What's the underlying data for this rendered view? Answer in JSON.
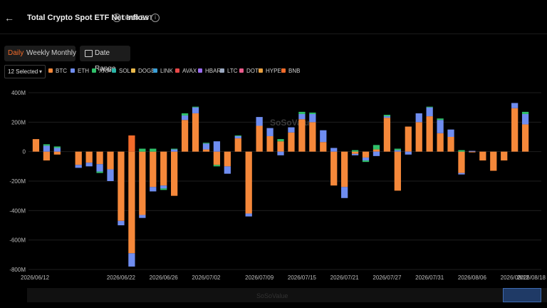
{
  "header": {
    "back_icon": "arrow-left-icon",
    "title": "Total Crypto Spot ETF Net Inflow",
    "date": "08/18",
    "timezone": "EST"
  },
  "controls": {
    "periods": [
      "Daily",
      "Weekly",
      "Monthly"
    ],
    "active_period": "Daily",
    "date_range_label": "Date Range",
    "select_label": "12 Selected"
  },
  "legend": [
    {
      "name": "BTC",
      "color": "#f5883a"
    },
    {
      "name": "ETH",
      "color": "#6f8df0"
    },
    {
      "name": "XRP",
      "color": "#2fc06a"
    },
    {
      "name": "SOL",
      "color": "#2ab6a8"
    },
    {
      "name": "DOGE",
      "color": "#e8b84b"
    },
    {
      "name": "LINK",
      "color": "#3a9fd6"
    },
    {
      "name": "AVAX",
      "color": "#e84848"
    },
    {
      "name": "HBAR",
      "color": "#9b6cf0"
    },
    {
      "name": "LTC",
      "color": "#9aa8c0"
    },
    {
      "name": "DOT",
      "color": "#e85a8a"
    },
    {
      "name": "HYPE",
      "color": "#e8a040"
    },
    {
      "name": "BNB",
      "color": "#f26b2a"
    }
  ],
  "watermark": "SoSoValue",
  "chart_data": {
    "type": "bar",
    "stacked": true,
    "ylim": [
      -800,
      400
    ],
    "y_ticks": [
      400,
      200,
      0,
      -200,
      -400,
      -600,
      -800
    ],
    "y_tick_labels": [
      "400M",
      "200M",
      "0",
      "-200M",
      "-400M",
      "-600M",
      "-800M"
    ],
    "x_tick_labels": [
      "2026/06/12",
      "2026/06/22",
      "2026/06/26",
      "2026/07/02",
      "2026/07/09",
      "2026/07/15",
      "2026/07/21",
      "2026/07/27",
      "2026/07/31",
      "2026/08/06",
      "2026/08/12",
      "2026/08/18"
    ],
    "x_tick_positions": [
      0,
      8,
      12,
      16,
      21,
      25,
      29,
      33,
      37,
      41,
      45,
      49
    ],
    "days": [
      {
        "btc": 85,
        "eth": 0,
        "other": 0
      },
      {
        "btc": -60,
        "eth": 40,
        "other": 10
      },
      {
        "btc": -20,
        "eth": 25,
        "other": 10
      },
      {
        "btc": 0,
        "eth": 0,
        "other": 0
      },
      {
        "btc": -90,
        "eth": -20,
        "other": 0
      },
      {
        "btc": -75,
        "eth": -25,
        "other": 0
      },
      {
        "btc": -85,
        "eth": -50,
        "other": -10
      },
      {
        "btc": -120,
        "eth": -80,
        "other": 0
      },
      {
        "btc": -470,
        "eth": -30,
        "other": 0
      },
      {
        "btc": -690,
        "eth": -90,
        "other": 0,
        "bnb": 110
      },
      {
        "btc": -430,
        "eth": -20,
        "other": 20
      },
      {
        "btc": -240,
        "eth": -30,
        "other": 20
      },
      {
        "btc": -230,
        "eth": -20,
        "other": -10
      },
      {
        "btc": -300,
        "eth": 15,
        "other": 5
      },
      {
        "btc": 215,
        "eth": 30,
        "other": 15
      },
      {
        "btc": 260,
        "eth": 40,
        "other": 5
      },
      {
        "btc": 15,
        "eth": 40,
        "other": 5
      },
      {
        "btc": -90,
        "eth": 70,
        "other": -10
      },
      {
        "btc": -100,
        "eth": -50,
        "other": 0
      },
      {
        "btc": 90,
        "eth": 15,
        "other": 5
      },
      {
        "btc": -420,
        "eth": -20,
        "other": 0
      },
      {
        "btc": 175,
        "eth": 60,
        "other": 0
      },
      {
        "btc": 105,
        "eth": 55,
        "other": 0
      },
      {
        "btc": 70,
        "eth": -25,
        "other": 15
      },
      {
        "btc": 130,
        "eth": 35,
        "other": 0
      },
      {
        "btc": 220,
        "eth": 35,
        "other": 15
      },
      {
        "btc": 200,
        "eth": 55,
        "other": 10
      },
      {
        "btc": 65,
        "eth": 80,
        "other": 0
      },
      {
        "btc": -230,
        "eth": 25,
        "other": 0
      },
      {
        "btc": -240,
        "eth": -75,
        "other": 0
      },
      {
        "btc": -15,
        "eth": -10,
        "other": 10
      },
      {
        "btc": -40,
        "eth": -20,
        "other": -10
      },
      {
        "btc": 15,
        "eth": -30,
        "other": 30
      },
      {
        "btc": 230,
        "eth": 10,
        "other": 10
      },
      {
        "btc": -265,
        "eth": 10,
        "other": 10
      },
      {
        "btc": 170,
        "eth": -20,
        "other": 0
      },
      {
        "btc": 200,
        "eth": 60,
        "other": 0
      },
      {
        "btc": 240,
        "eth": 60,
        "other": 5
      },
      {
        "btc": 125,
        "eth": 90,
        "other": 10
      },
      {
        "btc": 100,
        "eth": 50,
        "other": 0
      },
      {
        "btc": -145,
        "eth": -10,
        "other": 10
      },
      {
        "btc": -5,
        "eth": 5,
        "other": 0
      },
      {
        "btc": -60,
        "eth": 0,
        "other": 0
      },
      {
        "btc": -130,
        "eth": 0,
        "other": 0
      },
      {
        "btc": -60,
        "eth": 0,
        "other": 0
      },
      {
        "btc": 295,
        "eth": 35,
        "other": 0
      },
      {
        "btc": 185,
        "eth": 70,
        "other": 15
      }
    ]
  }
}
